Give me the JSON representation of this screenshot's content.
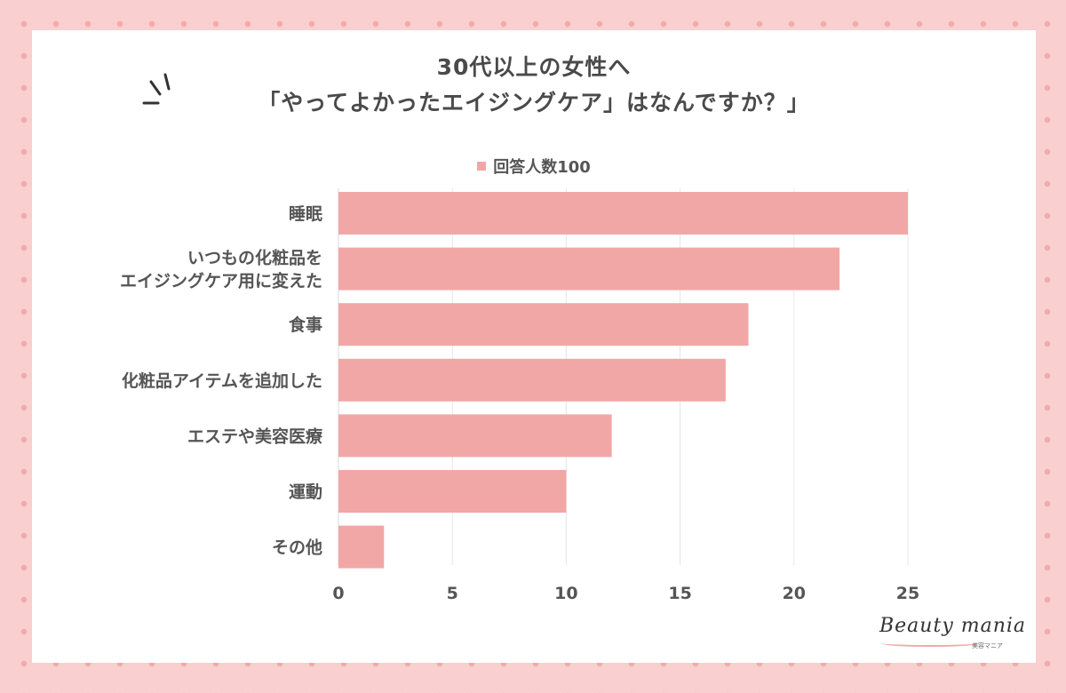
{
  "title": {
    "line1": "30代以上の女性へ",
    "line2": "「やってよかったエイジングケア」はなんですか？」"
  },
  "logo": {
    "text": "Beauty mania",
    "sub": "美容マニア"
  },
  "colors": {
    "bar": "#f2a7a7",
    "highlight": "#fbf1b6",
    "background": "#f9cfcf"
  },
  "chart_data": {
    "type": "bar",
    "orientation": "horizontal",
    "categories": [
      [
        "睡眠"
      ],
      [
        "いつもの化粧品を",
        "エイジングケア用に変えた"
      ],
      [
        "食事"
      ],
      [
        "化粧品アイテムを追加した"
      ],
      [
        "エステや美容医療"
      ],
      [
        "運動"
      ],
      [
        "その他"
      ]
    ],
    "series": [
      {
        "name": "回答人数100",
        "values": [
          25,
          22,
          18,
          17,
          12,
          10,
          2
        ]
      }
    ],
    "xlim": [
      0,
      25
    ],
    "xticks": [
      0,
      5,
      10,
      15,
      20,
      25
    ],
    "grid": true,
    "legend": "top"
  }
}
